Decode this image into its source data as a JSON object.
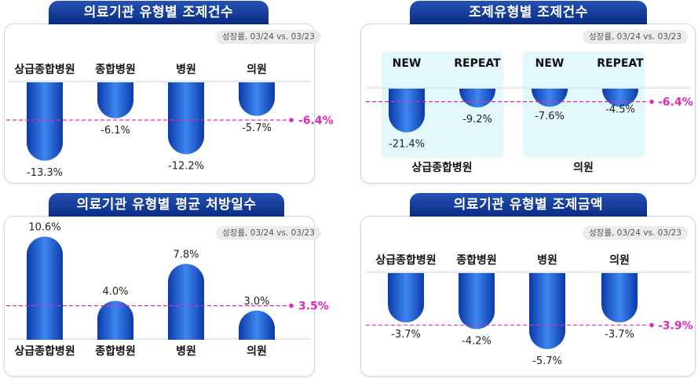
{
  "growth_note": "성장률, 03/24 vs. 03/23",
  "colors": {
    "title_bg": "#0a2c82",
    "bar": "#1f5fd6",
    "average": "#e22bb5",
    "group_bg": "#e2f8fb"
  },
  "chart_data": [
    {
      "id": "claims-by-type",
      "type": "bar",
      "title": "의료기관 유형별 조제건수",
      "categories": [
        "상급종합병원",
        "종합병원",
        "병원",
        "의원"
      ],
      "values": [
        -13.3,
        -6.1,
        -12.2,
        -5.7
      ],
      "value_labels": [
        "-13.3%",
        "-6.1%",
        "-12.2%",
        "-5.7%"
      ],
      "average": -6.4,
      "average_label": "-6.4%",
      "value_unit": "%"
    },
    {
      "id": "claims-by-dispense-type",
      "type": "bar",
      "title": "조제유형별 조제건수",
      "groups": [
        "상급종합병원",
        "의원"
      ],
      "categories": [
        "NEW",
        "REPEAT",
        "NEW",
        "REPEAT"
      ],
      "category_group": [
        0,
        0,
        1,
        1
      ],
      "values": [
        -21.4,
        -9.2,
        -7.6,
        -4.5
      ],
      "value_labels": [
        "-21.4%",
        "-9.2%",
        "-7.6%",
        "-4.5%"
      ],
      "average": -6.4,
      "average_label": "-6.4%",
      "value_unit": "%"
    },
    {
      "id": "avg-days-by-type",
      "type": "bar",
      "title": "의료기관 유형별 평균 처방일수",
      "categories": [
        "상급종합병원",
        "종합병원",
        "병원",
        "의원"
      ],
      "values": [
        10.6,
        4.0,
        7.8,
        3.0
      ],
      "value_labels": [
        "10.6%",
        "4.0%",
        "7.8%",
        "3.0%"
      ],
      "average": 3.5,
      "average_label": "3.5%",
      "value_unit": "%"
    },
    {
      "id": "amount-by-type",
      "type": "bar",
      "title": "의료기관 유형별 조제금액",
      "categories": [
        "상급종합병원",
        "종합병원",
        "병원",
        "의원"
      ],
      "values": [
        -3.7,
        -4.2,
        -5.7,
        -3.7
      ],
      "value_labels": [
        "-3.7%",
        "-4.2%",
        "-5.7%",
        "-3.7%"
      ],
      "average": -3.9,
      "average_label": "-3.9%",
      "value_unit": "%"
    }
  ]
}
